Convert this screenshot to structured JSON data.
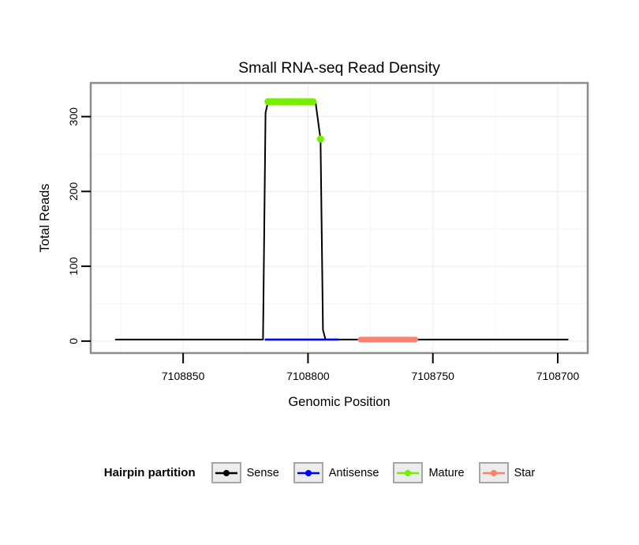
{
  "chart_data": {
    "type": "line",
    "title": "Small RNA-seq Read Density",
    "xlabel": "Genomic Position",
    "ylabel": "Total Reads",
    "x_axis_reversed": true,
    "xlim": [
      7108887,
      7108688
    ],
    "ylim": [
      -16,
      345
    ],
    "grid": true,
    "x_ticks": [
      {
        "value": 7108850,
        "label": "7108850"
      },
      {
        "value": 7108800,
        "label": "7108800"
      },
      {
        "value": 7108750,
        "label": "7108750"
      },
      {
        "value": 7108700,
        "label": "7108700"
      }
    ],
    "y_ticks": [
      {
        "value": 0,
        "label": "0"
      },
      {
        "value": 100,
        "label": "100"
      },
      {
        "value": 200,
        "label": "200"
      },
      {
        "value": 300,
        "label": "300"
      }
    ],
    "series": [
      {
        "name": "Sense",
        "style": "line",
        "color": "#000000",
        "linewidth": 2,
        "points": [
          [
            7108877,
            2
          ],
          [
            7108818,
            2
          ],
          [
            7108817,
            305
          ],
          [
            7108816,
            320
          ],
          [
            7108797,
            320
          ],
          [
            7108795,
            270
          ],
          [
            7108794,
            15
          ],
          [
            7108793,
            2
          ],
          [
            7108696,
            2
          ]
        ]
      },
      {
        "name": "Antisense",
        "style": "line",
        "color": "#0000FF",
        "linewidth": 2.5,
        "points": [
          [
            7108817,
            2
          ],
          [
            7108788,
            2
          ]
        ]
      },
      {
        "name": "Star",
        "style": "line",
        "color": "#FA8072",
        "linewidth": 7,
        "points": [
          [
            7108779,
            2
          ],
          [
            7108757,
            2
          ]
        ]
      },
      {
        "name": "Mature",
        "style": "points",
        "color": "#76EE00",
        "pointsize": 4.5,
        "points": [
          [
            7108816,
            320
          ],
          [
            7108815,
            320
          ],
          [
            7108814,
            320
          ],
          [
            7108813,
            320
          ],
          [
            7108812,
            320
          ],
          [
            7108811,
            320
          ],
          [
            7108810,
            320
          ],
          [
            7108809,
            320
          ],
          [
            7108808,
            320
          ],
          [
            7108807,
            320
          ],
          [
            7108806,
            320
          ],
          [
            7108805,
            320
          ],
          [
            7108804,
            320
          ],
          [
            7108803,
            320
          ],
          [
            7108802,
            320
          ],
          [
            7108801,
            320
          ],
          [
            7108800,
            320
          ],
          [
            7108799,
            320
          ],
          [
            7108798,
            320
          ],
          [
            7108795,
            270
          ]
        ]
      }
    ],
    "legend": {
      "title": "Hairpin partition",
      "position": "bottom",
      "entries": [
        {
          "label": "Sense",
          "color": "#000000"
        },
        {
          "label": "Antisense",
          "color": "#0000FF"
        },
        {
          "label": "Mature",
          "color": "#76EE00"
        },
        {
          "label": "Star",
          "color": "#FA8072"
        }
      ]
    }
  }
}
